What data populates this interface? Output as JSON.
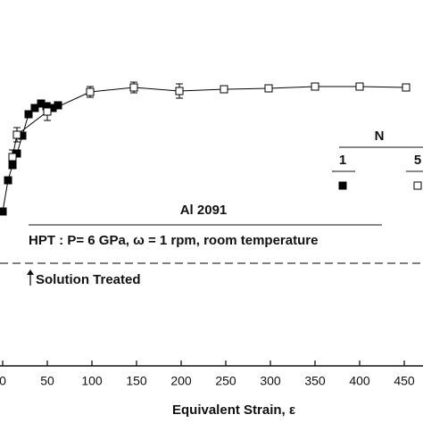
{
  "chart_data": {
    "type": "scatter",
    "x_label": "Equivalent Strain, ε",
    "annotations": [
      "Al 2091",
      "HPT : P= 6 GPa, ω = 1 rpm, room temperature",
      "Solution Treated"
    ],
    "solution_level": 115,
    "legend_title": "N",
    "series": [
      {
        "name": "1",
        "marker": "filled",
        "color": "#000000",
        "x": [
          0,
          6,
          11,
          16,
          22,
          29,
          36,
          43,
          49,
          56,
          62
        ],
        "values": [
          173,
          208,
          225,
          238,
          258,
          282,
          289,
          294,
          291,
          289,
          292
        ]
      },
      {
        "name": "5",
        "marker": "open",
        "color": "#000000",
        "x": [
          11,
          16,
          50,
          98,
          147,
          198,
          248,
          298,
          350,
          400,
          452
        ],
        "values": [
          234,
          259,
          285,
          307,
          312,
          308,
          310,
          311,
          313,
          313,
          312
        ],
        "errors": [
          8,
          8,
          10,
          6,
          6,
          8,
          4,
          4,
          3,
          3,
          4
        ]
      }
    ],
    "xlim": [
      -3,
      471
    ],
    "ylim": [
      0,
      410
    ],
    "xticks": [
      0,
      50,
      100,
      150,
      200,
      250,
      300,
      350,
      400,
      450
    ]
  }
}
